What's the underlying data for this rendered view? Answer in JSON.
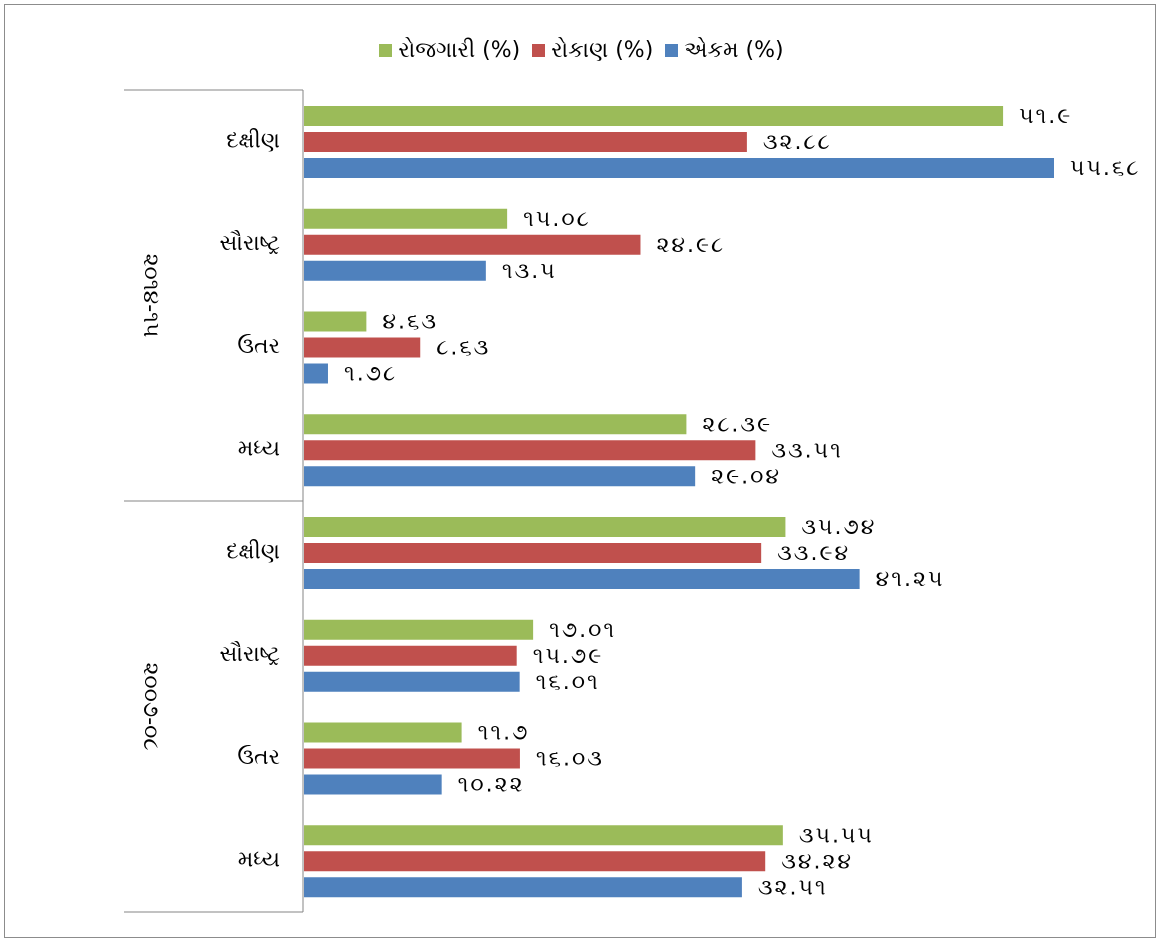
{
  "chart_data": {
    "type": "bar",
    "orientation": "horizontal",
    "legend_position": "top",
    "grid": false,
    "xlim": [
      0,
      57
    ],
    "colors": {
      "employment": "#9bbb59",
      "investment": "#c0504d",
      "units": "#4f81bd"
    },
    "series": [
      {
        "key": "employment",
        "name": "રોજગારી (%)"
      },
      {
        "key": "investment",
        "name": "રોકાણ (%)"
      },
      {
        "key": "units",
        "name": "એકમ (%)"
      }
    ],
    "groups": [
      {
        "period": "૨૦૧૪-૧૫",
        "regions": [
          {
            "label": "દક્ષીણ",
            "values": [
              51.9,
              32.88,
              55.68
            ],
            "data_labels": [
              "૫૧.૯",
              "૩૨.૮૮",
              "૫૫.૬૮"
            ]
          },
          {
            "label": "સૌરાષ્ટ્ર",
            "values": [
              15.08,
              24.98,
              13.5
            ],
            "data_labels": [
              "૧૫.૦૮",
              "૨૪.૯૮",
              "૧૩.૫"
            ]
          },
          {
            "label": "ઉતર",
            "values": [
              4.63,
              8.63,
              1.78
            ],
            "data_labels": [
              "૪.૬૩",
              "૮.૬૩",
              "૧.૭૮"
            ]
          },
          {
            "label": "મધ્ય",
            "values": [
              28.39,
              33.51,
              29.04
            ],
            "data_labels": [
              "૨૮.૩૯",
              "૩૩.૫૧",
              "૨૯.૦૪"
            ]
          }
        ]
      },
      {
        "period": "૨૦૦૭-૦૮",
        "regions": [
          {
            "label": "દક્ષીણ",
            "values": [
              35.74,
              33.94,
              41.25
            ],
            "data_labels": [
              "૩૫.૭૪",
              "૩૩.૯૪",
              "૪૧.૨૫"
            ]
          },
          {
            "label": "સૌરાષ્ટ્ર",
            "values": [
              17.01,
              15.79,
              16.01
            ],
            "data_labels": [
              "૧૭.૦૧",
              "૧૫.૭૯",
              "૧૬.૦૧"
            ]
          },
          {
            "label": "ઉતર",
            "values": [
              11.7,
              16.03,
              10.22
            ],
            "data_labels": [
              "૧૧.૭",
              "૧૬.૦૩",
              "૧૦.૨૨"
            ]
          },
          {
            "label": "મધ્ય",
            "values": [
              35.55,
              34.24,
              32.51
            ],
            "data_labels": [
              "૩૫.૫૫",
              "૩૪.૨૪",
              "૩૨.૫૧"
            ]
          }
        ]
      }
    ]
  }
}
